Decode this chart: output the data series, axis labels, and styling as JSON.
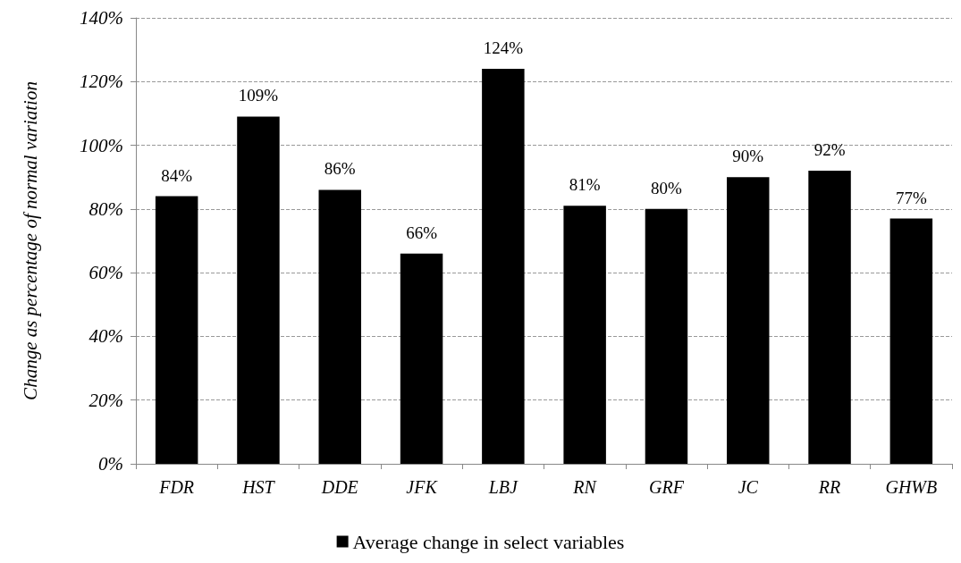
{
  "chart_data": {
    "type": "bar",
    "ylabel": "Change as percentage of normal variation",
    "categories": [
      "FDR",
      "HST",
      "DDE",
      "JFK",
      "LBJ",
      "RN",
      "GRF",
      "JC",
      "RR",
      "GHWB"
    ],
    "series": [
      {
        "name": "Average change in select variables",
        "color": "#000000",
        "values": [
          84,
          109,
          86,
          66,
          124,
          81,
          80,
          90,
          92,
          77
        ],
        "value_labels": [
          "84%",
          "109%",
          "86%",
          "66%",
          "124%",
          "81%",
          "80%",
          "90%",
          "92%",
          "77%"
        ]
      }
    ],
    "ylim": [
      0,
      140
    ],
    "yticks": [
      {
        "value": 0,
        "label": "0%"
      },
      {
        "value": 20,
        "label": "20%"
      },
      {
        "value": 40,
        "label": "40%"
      },
      {
        "value": 60,
        "label": "60%"
      },
      {
        "value": 80,
        "label": "80%"
      },
      {
        "value": 100,
        "label": "100%"
      },
      {
        "value": 120,
        "label": "120%"
      },
      {
        "value": 140,
        "label": "140%"
      }
    ],
    "grid": "y",
    "legend": "bottom"
  }
}
